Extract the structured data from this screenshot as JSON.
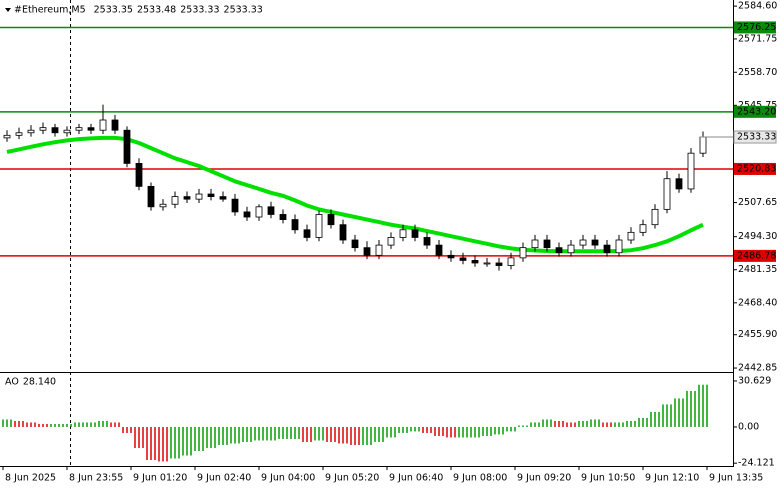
{
  "chart_data": {
    "type": "candlestick",
    "title": "#Ethereum,M5",
    "header_values": [
      2533.35,
      2533.48,
      2533.33,
      2533.33
    ],
    "x": [
      1,
      4,
      7,
      10,
      13,
      16,
      19,
      22,
      25,
      28,
      31,
      34,
      37,
      40,
      43,
      46,
      49,
      52,
      55,
      58,
      61,
      64,
      67,
      70,
      73,
      76,
      79,
      82,
      85,
      88,
      91,
      94,
      97,
      100,
      103,
      106,
      109,
      112,
      115,
      118,
      121,
      124,
      127,
      130,
      133,
      136,
      139,
      142,
      145,
      148,
      151,
      154,
      157,
      160,
      163,
      166,
      169,
      172,
      175
    ],
    "open": [
      2533,
      2534,
      2535,
      2536,
      2537,
      2535,
      2536,
      2537,
      2536,
      2540,
      2536,
      2523,
      2514,
      2506,
      2507,
      2510,
      2509,
      2511,
      2510,
      2509,
      2504,
      2502,
      2506,
      2503,
      2501,
      2497,
      2494,
      2503,
      2499,
      2493,
      2490,
      2487,
      2491,
      2494,
      2497,
      2494,
      2491,
      2487,
      2486,
      2485,
      2484,
      2484,
      2483,
      2486,
      2490,
      2493,
      2490,
      2488,
      2491,
      2493,
      2491,
      2488,
      2493,
      2496,
      2499,
      2505,
      2517,
      2513,
      2527
    ],
    "high": [
      2536,
      2537,
      2538,
      2539,
      2538.5,
      2537.5,
      2538.5,
      2538.5,
      2546,
      2542,
      2537.5,
      2525,
      2515.5,
      2509,
      2512,
      2512,
      2513,
      2513,
      2512,
      2511,
      2506,
      2507,
      2508,
      2505,
      2503,
      2499,
      2504.5,
      2505,
      2501,
      2495,
      2492.5,
      2493,
      2496,
      2499,
      2499,
      2496,
      2493,
      2489,
      2488,
      2487,
      2486,
      2486,
      2488,
      2492,
      2495,
      2495,
      2492,
      2493,
      2495,
      2495,
      2493,
      2495,
      2498,
      2501,
      2507,
      2520,
      2519,
      2529,
      2535.5
    ],
    "low": [
      2531.5,
      2532.5,
      2533.5,
      2534.5,
      2533.5,
      2533.5,
      2534.5,
      2534.5,
      2534.5,
      2534.5,
      2521.5,
      2512.5,
      2504.5,
      2504.5,
      2505.5,
      2507.5,
      2507.5,
      2508.5,
      2508,
      2502.5,
      2500.5,
      2500.5,
      2501.5,
      2499.5,
      2495.5,
      2492.5,
      2492.5,
      2497.5,
      2491.5,
      2488.5,
      2485.5,
      2485.5,
      2489.5,
      2492.5,
      2492.5,
      2489.5,
      2485.5,
      2484.5,
      2483.5,
      2482.5,
      2482.5,
      2481,
      2481.5,
      2484.5,
      2488.5,
      2488.5,
      2486.5,
      2486.5,
      2489.5,
      2489.5,
      2486.5,
      2486.5,
      2491.5,
      2494.5,
      2497.5,
      2503.5,
      2511.5,
      2511.5,
      2525.5
    ],
    "close": [
      2534,
      2535,
      2536,
      2537,
      2535,
      2536,
      2537,
      2536,
      2540,
      2536,
      2523,
      2514,
      2506,
      2507,
      2510,
      2509,
      2511,
      2510,
      2509,
      2504,
      2502,
      2506,
      2503,
      2501,
      2497,
      2494,
      2503,
      2499,
      2493,
      2490,
      2487,
      2491,
      2494,
      2497,
      2494,
      2491,
      2487,
      2486,
      2485,
      2484,
      2484,
      2483,
      2486,
      2490,
      2493,
      2490,
      2488,
      2491,
      2493,
      2491,
      2488,
      2493,
      2496,
      2499,
      2505,
      2517,
      2513,
      2527,
      2533.33
    ],
    "up_color": "#ffffff",
    "down_color": "#000000",
    "ma": {
      "color": "#00e000",
      "values": [
        2527.5,
        2528.5,
        2529.5,
        2530.5,
        2531.3,
        2532,
        2532.5,
        2532.8,
        2533,
        2533,
        2532.5,
        2531,
        2529,
        2527,
        2525,
        2523.5,
        2522,
        2520,
        2518,
        2516,
        2514.5,
        2513,
        2511.5,
        2510.3,
        2508.5,
        2506.5,
        2505,
        2504,
        2503,
        2502,
        2501,
        2500,
        2499,
        2498.2,
        2497.5,
        2496.5,
        2495.5,
        2494.5,
        2493.5,
        2492.5,
        2491.5,
        2490.5,
        2489.7,
        2489.2,
        2488.9,
        2488.7,
        2488.6,
        2488.6,
        2488.6,
        2488.6,
        2488.6,
        2488.7,
        2489,
        2489.8,
        2491,
        2492.5,
        2494.5,
        2496.8,
        2499
      ]
    },
    "levels": [
      {
        "value": 2576.25,
        "label": "2576.25",
        "color": "#0a8a0a"
      },
      {
        "value": 2543.2,
        "label": "2543.20",
        "color": "#0a8a0a"
      },
      {
        "value": 2520.83,
        "label": "2520.83",
        "color": "#e00000"
      },
      {
        "value": 2486.78,
        "label": "2486.78",
        "color": "#e00000"
      }
    ],
    "current_price": {
      "value": 2533.33,
      "label": "2533.33"
    },
    "xlim": [
      -0.75,
      182.5
    ],
    "xticks": [
      {
        "value": 0,
        "label": "8 Jun 2025"
      },
      {
        "value": 16,
        "label": "8 Jun 23:55"
      },
      {
        "value": 32,
        "label": "9 Jun 01:20"
      },
      {
        "value": 48,
        "label": "9 Jun 02:40"
      },
      {
        "value": 64,
        "label": "9 Jun 04:00"
      },
      {
        "value": 80,
        "label": "9 Jun 05:20"
      },
      {
        "value": 96,
        "label": "9 Jun 06:40"
      },
      {
        "value": 112,
        "label": "9 Jun 08:00"
      },
      {
        "value": 128,
        "label": "9 Jun 09:20"
      },
      {
        "value": 144,
        "label": "9 Jun 10:50"
      },
      {
        "value": 160,
        "label": "9 Jun 12:10"
      },
      {
        "value": 176,
        "label": "9 Jun 13:35"
      }
    ],
    "ylim": [
      2441.3,
      2587.0
    ],
    "yticks": [
      {
        "value": 2584.6,
        "label": "2584.60"
      },
      2571.75,
      {
        "value": 2558.7,
        "label": "2558.70"
      },
      2545.75,
      2507.65,
      {
        "value": 2494.3,
        "label": "2494.30"
      },
      2481.35,
      {
        "value": 2468.4,
        "label": "2468.40"
      },
      {
        "value": 2455.9,
        "label": "2455.90"
      },
      2442.85
    ],
    "indicator": {
      "type": "bar",
      "name": "AO",
      "last": {
        "value": 28.14,
        "label": "28.140"
      },
      "up_color": "#00a000",
      "down_color": "#e00000",
      "values": [
        5,
        4,
        3,
        2,
        2,
        2,
        3,
        3,
        4,
        3,
        -4,
        -14,
        -22,
        -23,
        -21,
        -19,
        -16,
        -14,
        -12,
        -11,
        -10,
        -9,
        -9,
        -8,
        -8,
        -10,
        -9,
        -10,
        -11,
        -12,
        -12,
        -10,
        -7,
        -4,
        -3,
        -4,
        -6,
        -7,
        -7,
        -7,
        -6,
        -5,
        -3,
        1,
        3,
        5,
        4,
        3,
        4,
        5,
        3,
        3,
        4,
        6,
        10,
        15,
        19,
        24,
        28.14
      ],
      "ylim": [
        -26.0,
        34.6
      ],
      "yticks": [
        30.629,
        {
          "value": 0,
          "label": "0.00"
        },
        -24.121
      ]
    }
  }
}
